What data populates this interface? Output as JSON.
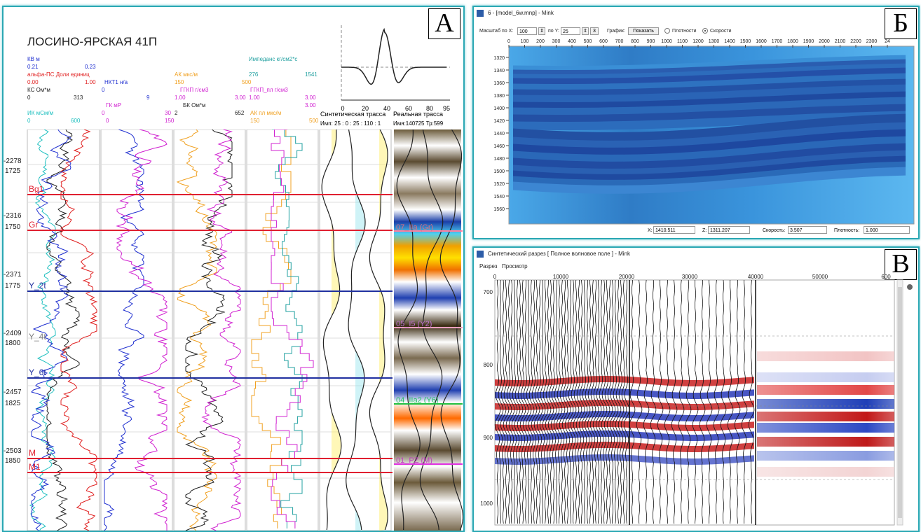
{
  "panel_a": {
    "letter": "А",
    "well_name": "ЛОСИНО-ЯРСКАЯ 41П",
    "curve_labels": [
      {
        "text": "КВ м",
        "color": "#2030d0"
      },
      {
        "text": "0.21",
        "color": "#2030d0"
      },
      {
        "text": "0.23",
        "color": "#2030d0"
      },
      {
        "text": "альфа-ПС Доли единиц",
        "color": "#e02020"
      },
      {
        "text": "0.00",
        "color": "#e02020"
      },
      {
        "text": "1.00",
        "color": "#e02020"
      },
      {
        "text": "НКТ1 н/а",
        "color": "#2030d0"
      },
      {
        "text": "КС Ом*м",
        "color": "#222222"
      },
      {
        "text": "0",
        "color": "#2030d0"
      },
      {
        "text": "0",
        "color": "#222222"
      },
      {
        "text": "313",
        "color": "#222222"
      },
      {
        "text": "9",
        "color": "#2030d0"
      },
      {
        "text": "ГК мР",
        "color": "#d020d0"
      },
      {
        "text": "ИК мСм/м",
        "color": "#20c0c0"
      },
      {
        "text": "0",
        "color": "#d020d0"
      },
      {
        "text": "30",
        "color": "#d020d0"
      },
      {
        "text": "0",
        "color": "#20c0c0"
      },
      {
        "text": "600",
        "color": "#20c0c0"
      },
      {
        "text": "0",
        "color": "#d020d0"
      },
      {
        "text": "150",
        "color": "#d020d0"
      },
      {
        "text": "АК мкс/м",
        "color": "#f0a020"
      },
      {
        "text": "150",
        "color": "#f0a020"
      },
      {
        "text": "500",
        "color": "#f0a020"
      },
      {
        "text": "ГГКП г/см3",
        "color": "#d020d0"
      },
      {
        "text": "1.00",
        "color": "#d020d0"
      },
      {
        "text": "3.00",
        "color": "#d020d0"
      },
      {
        "text": "БК Ом*м",
        "color": "#222222"
      },
      {
        "text": "2",
        "color": "#222222"
      },
      {
        "text": "652",
        "color": "#222222"
      },
      {
        "text": "Импеданс кг/см2*с",
        "color": "#20a0a0"
      },
      {
        "text": "276",
        "color": "#20a0a0"
      },
      {
        "text": "1541",
        "color": "#20a0a0"
      },
      {
        "text": "ГГКП_пл г/см3",
        "color": "#d020d0"
      },
      {
        "text": "1.00",
        "color": "#d020d0"
      },
      {
        "text": "3.00",
        "color": "#d020d0"
      },
      {
        "text": "АК пл мкс/м",
        "color": "#f0a020"
      },
      {
        "text": "150",
        "color": "#f0a020"
      },
      {
        "text": "500",
        "color": "#f0a020"
      },
      {
        "text": "3.00",
        "color": "#d020d0"
      }
    ],
    "wavelet_axis": [
      "0",
      "20",
      "40",
      "60",
      "80",
      "95"
    ],
    "synthetic_title": "Синтетическая трасса",
    "synthetic_sub": "Имп: 25 : 0 : 25 : 110 : 1",
    "real_title": "Реальная трасса",
    "real_sub": "Имя:140725 Тр:599",
    "depth_labels": [
      {
        "abs": "-2278",
        "md": "1725"
      },
      {
        "abs": "-2316",
        "md": "1750"
      },
      {
        "abs": "-2371",
        "md": "1775"
      },
      {
        "abs": "-2409",
        "md": "1800"
      },
      {
        "abs": "-2457",
        "md": "1825"
      },
      {
        "abs": "-2503",
        "md": "1850"
      }
    ],
    "horizons": [
      {
        "name": "Bg1",
        "color": "#e02030"
      },
      {
        "name": "Gr",
        "color": "#e02030"
      },
      {
        "name": "Y_2t",
        "color": "#2030a0"
      },
      {
        "name": "Y_4t",
        "color": "#808080"
      },
      {
        "name": "Y_6t",
        "color": "#2030a0"
      },
      {
        "name": "M",
        "color": "#e02030"
      },
      {
        "name": "M1",
        "color": "#e02030"
      }
    ],
    "trace_markers": [
      {
        "text": "07_IIa (Gr)",
        "color": "#e07080"
      },
      {
        "text": "05_I5 (Y2)",
        "color": "#c070d0"
      },
      {
        "text": "04_IIa2 (Y6)",
        "color": "#20c060"
      },
      {
        "text": "01_PZ (M)",
        "color": "#c040c0"
      }
    ]
  },
  "panel_b": {
    "letter": "Б",
    "window_title": "6 - [model_6w.mnp] - Mink",
    "toolbar": {
      "scale_label": "Масштаб",
      "x_label": "по X:",
      "x_value": "100",
      "y_label": "по Y:",
      "y_value": "25",
      "step_value": "3",
      "graph_label": "График:",
      "show_button": "Показать",
      "density_label": "Плотности",
      "velocity_label": "Скорости"
    },
    "x_ticks": [
      "0",
      "100",
      "200",
      "300",
      "400",
      "500",
      "600",
      "700",
      "800",
      "900",
      "1000",
      "1100",
      "1200",
      "1300",
      "1400",
      "1500",
      "1600",
      "1700",
      "1800",
      "1900",
      "2000",
      "2100",
      "2200",
      "2300",
      "24"
    ],
    "y_ticks": [
      "1320",
      "1340",
      "1360",
      "1380",
      "1400",
      "1420",
      "1440",
      "1460",
      "1480",
      "1500",
      "1520",
      "1540",
      "1560"
    ],
    "status": {
      "x_label": "X:",
      "x_value": "1410.511",
      "z_label": "Z:",
      "z_value": "1311.207",
      "v_label": "Скорость:",
      "v_value": "3.507",
      "d_label": "Плотность:",
      "d_value": "1.000"
    }
  },
  "panel_c": {
    "letter": "В",
    "window_title": "Синтетический разрез [ Полное волновое поле ] - Mink",
    "menu": [
      "Разрез",
      "Просмотр"
    ],
    "x_ticks": [
      "0",
      "10000",
      "20000",
      "30000",
      "40000",
      "50000",
      "600"
    ],
    "y_ticks": [
      "700",
      "800",
      "900",
      "1000"
    ]
  }
}
